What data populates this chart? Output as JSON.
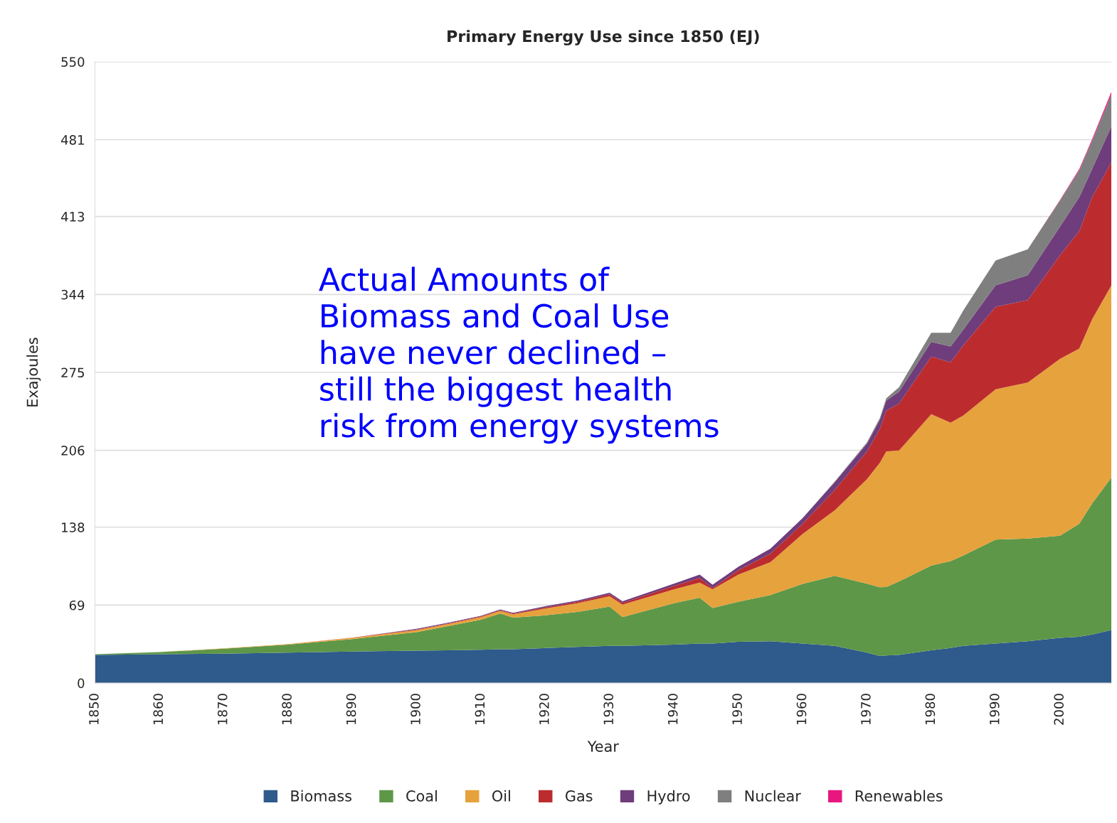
{
  "chart_data": {
    "type": "area",
    "stacked": true,
    "title": "Primary Energy Use since 1850 (EJ)",
    "xlabel": "Year",
    "ylabel": "Exajoules",
    "x": [
      1850,
      1860,
      1870,
      1880,
      1890,
      1900,
      1905,
      1910,
      1913,
      1915,
      1920,
      1925,
      1930,
      1932,
      1940,
      1944,
      1946,
      1950,
      1955,
      1960,
      1965,
      1970,
      1972,
      1973,
      1975,
      1980,
      1983,
      1985,
      1990,
      1995,
      2000,
      2003,
      2005,
      2008
    ],
    "series": [
      {
        "name": "Biomass",
        "color": "#2e5a8c",
        "values": [
          25,
          25.5,
          26,
          27,
          28,
          28.7,
          29,
          29.5,
          30,
          30,
          31,
          32,
          33,
          33,
          34,
          35,
          35,
          36.5,
          37,
          35,
          33,
          27,
          24,
          24.5,
          25,
          29,
          31,
          33,
          35,
          37,
          40,
          41,
          43,
          47
        ]
      },
      {
        "name": "Coal",
        "color": "#5e9748",
        "values": [
          0.5,
          1.9,
          4.5,
          7,
          11,
          16.3,
          21.6,
          26.5,
          31.6,
          28,
          29,
          31,
          34.7,
          25.5,
          36.7,
          40.6,
          31.5,
          35.5,
          41,
          52.8,
          62,
          61,
          60.8,
          60.5,
          65,
          75,
          77,
          80,
          92,
          91,
          90.5,
          100,
          116,
          135
        ]
      },
      {
        "name": "Oil",
        "color": "#e6a23c",
        "values": [
          0,
          0.1,
          0.3,
          0.5,
          1,
          2,
          1.9,
          2.5,
          2.4,
          3,
          6,
          7.7,
          9.1,
          11,
          12.3,
          13.4,
          16.5,
          24,
          29,
          44.2,
          58,
          92.5,
          110.2,
          120,
          116,
          134,
          122.5,
          124,
          133,
          138,
          156.5,
          155,
          163,
          170
        ]
      },
      {
        "name": "Gas",
        "color": "#bc2c2e",
        "values": [
          0,
          0,
          0,
          0,
          0.2,
          0.5,
          0.5,
          0.5,
          0.6,
          0.6,
          1,
          1.3,
          1.7,
          1.5,
          3,
          4,
          1,
          4,
          7.6,
          9,
          18,
          24.5,
          30,
          36,
          41.5,
          51,
          53.5,
          62,
          73,
          73,
          91.7,
          104,
          108,
          109
        ]
      },
      {
        "name": "Hydro",
        "color": "#6f3d7b",
        "values": [
          0,
          0,
          0,
          0,
          0,
          0.5,
          0.5,
          0.5,
          0.6,
          0.6,
          1,
          1,
          1.5,
          1.5,
          2,
          3,
          3,
          3,
          4.4,
          5,
          7,
          7,
          8,
          9,
          10.5,
          13,
          14,
          14,
          19,
          22,
          25.3,
          30,
          25,
          32
        ]
      },
      {
        "name": "Nuclear",
        "color": "#7f7f7f",
        "values": [
          0,
          0,
          0,
          0,
          0,
          0,
          0,
          0,
          0,
          0,
          0,
          0,
          0,
          0,
          0,
          0,
          0,
          0,
          0,
          0,
          0.5,
          1,
          1.5,
          2,
          4,
          8,
          12,
          17,
          22,
          23,
          23,
          24,
          25,
          28
        ]
      },
      {
        "name": "Renewables",
        "color": "#e8177f",
        "values": [
          0,
          0,
          0,
          0,
          0,
          0,
          0,
          0,
          0,
          0,
          0,
          0,
          0,
          0,
          0,
          0,
          0,
          0,
          0,
          0,
          0,
          0,
          0,
          0,
          0,
          0,
          0,
          0,
          0,
          0,
          0.5,
          1,
          1.5,
          2.5
        ]
      }
    ],
    "xlim": [
      1850,
      2008
    ],
    "xticks": [
      1850,
      1860,
      1870,
      1880,
      1890,
      1900,
      1910,
      1920,
      1930,
      1940,
      1950,
      1960,
      1970,
      1980,
      1990,
      2000
    ],
    "ylim": [
      0,
      550
    ],
    "yticks": [
      0,
      69,
      138,
      206,
      275,
      344,
      413,
      481,
      550
    ],
    "grid": "y",
    "legend": "bottom",
    "annotations": [
      "Actual Amounts of\nBiomass and Coal Use\nhave never declined –\nstill the biggest health\nrisk from energy systems"
    ]
  }
}
